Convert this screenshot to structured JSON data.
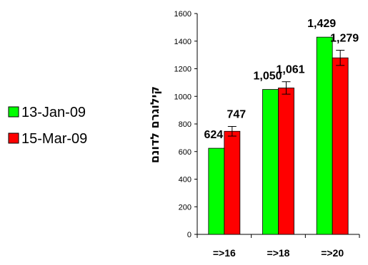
{
  "chart_data": {
    "type": "bar",
    "title": "",
    "xlabel": "",
    "ylabel": "קילוגרם לדונם",
    "categories": [
      "=>16",
      "=>18",
      "=>20"
    ],
    "series": [
      {
        "name": "13-Jan-09",
        "color": "#00ff00",
        "values": [
          624,
          1050,
          1429
        ],
        "value_labels": [
          "624",
          "1,050",
          "1,429"
        ],
        "error": [
          0,
          0,
          0
        ]
      },
      {
        "name": "15-Mar-09",
        "color": "#ff0000",
        "values": [
          747,
          1061,
          1279
        ],
        "value_labels": [
          "747",
          "1,061",
          "1,279"
        ],
        "error": [
          35,
          45,
          55
        ]
      }
    ],
    "ylim": [
      0,
      1600
    ],
    "yticks": [
      0,
      200,
      400,
      600,
      800,
      1000,
      1200,
      1400,
      1600
    ],
    "grid": false,
    "legend_position": "left"
  }
}
